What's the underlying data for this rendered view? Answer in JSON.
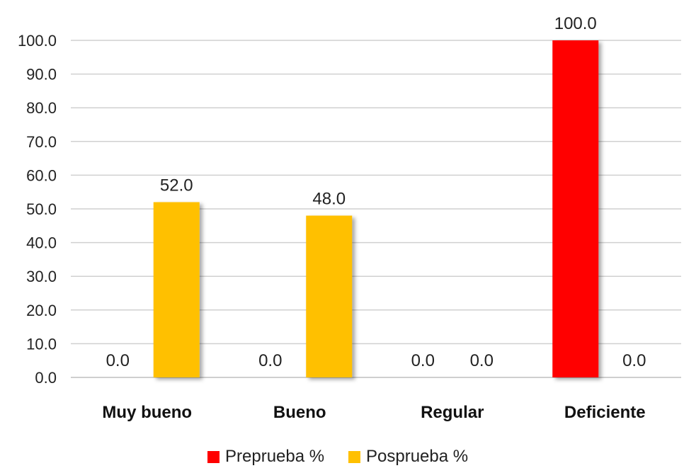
{
  "chart_data": {
    "type": "bar",
    "categories": [
      "Muy bueno",
      "Bueno",
      "Regular",
      "Deficiente"
    ],
    "series": [
      {
        "name": "Preprueba %",
        "color": "#ff0000",
        "values": [
          0.0,
          0.0,
          0.0,
          100.0
        ]
      },
      {
        "name": "Posprueba %",
        "color": "#ffc000",
        "values": [
          52.0,
          48.0,
          0.0,
          0.0
        ]
      }
    ],
    "ylim": [
      0,
      100
    ],
    "yticks": [
      "0.0",
      "10.0",
      "20.0",
      "30.0",
      "40.0",
      "50.0",
      "60.0",
      "70.0",
      "80.0",
      "90.0",
      "100.0"
    ],
    "grid": true,
    "legend_position": "bottom",
    "title": "",
    "xlabel": "",
    "ylabel": ""
  }
}
